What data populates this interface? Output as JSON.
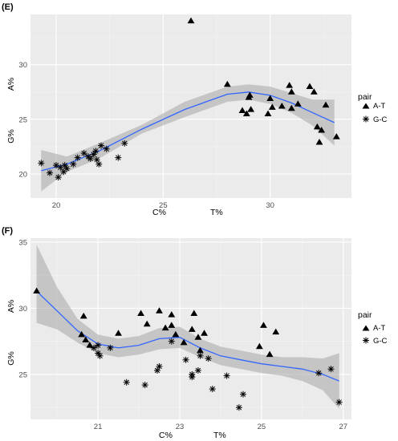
{
  "legend": {
    "title": "pair",
    "items": [
      {
        "label": "A-T",
        "shape": "triangle"
      },
      {
        "label": "G-C",
        "shape": "asterisk"
      }
    ]
  },
  "colors": {
    "panel": "#ebebeb",
    "smooth_line": "#3366ff",
    "ribbon": "#a6a6a6",
    "points": "#000000"
  },
  "chart_data": [
    {
      "panel": "(E)",
      "type": "scatter",
      "title": "",
      "xlabel_left": "C%",
      "xlabel_right": "T%",
      "ylabel_top": "A%",
      "ylabel_bottom": "G%",
      "xlim": [
        18.8,
        33.8
      ],
      "ylim": [
        17.8,
        34.6
      ],
      "x_ticks": [
        20,
        25,
        30
      ],
      "y_ticks": [
        20,
        25,
        30
      ],
      "grid": true,
      "legend_position": "right",
      "series": [
        {
          "name": "A-T",
          "marker": "triangle",
          "points": [
            [
              26.3,
              34.0
            ],
            [
              28.0,
              28.2
            ],
            [
              28.7,
              25.8
            ],
            [
              28.9,
              25.5
            ],
            [
              29.0,
              27.0
            ],
            [
              29.05,
              27.2
            ],
            [
              29.1,
              25.9
            ],
            [
              29.9,
              25.5
            ],
            [
              30.0,
              26.9
            ],
            [
              30.1,
              26.1
            ],
            [
              30.55,
              26.2
            ],
            [
              30.9,
              28.1
            ],
            [
              31.0,
              27.5
            ],
            [
              31.3,
              26.4
            ],
            [
              31.85,
              28.0
            ],
            [
              32.05,
              27.5
            ],
            [
              32.2,
              24.3
            ],
            [
              32.3,
              22.9
            ],
            [
              32.4,
              24.0
            ],
            [
              32.6,
              26.3
            ],
            [
              33.1,
              23.4
            ],
            [
              31.0,
              26.0
            ]
          ]
        },
        {
          "name": "G-C",
          "marker": "asterisk",
          "points": [
            [
              19.3,
              21.0
            ],
            [
              19.7,
              20.1
            ],
            [
              20.0,
              20.8
            ],
            [
              20.1,
              19.7
            ],
            [
              20.35,
              20.2
            ],
            [
              20.4,
              20.8
            ],
            [
              20.5,
              20.5
            ],
            [
              20.8,
              20.9
            ],
            [
              21.0,
              21.5
            ],
            [
              21.3,
              21.9
            ],
            [
              21.5,
              21.6
            ],
            [
              21.6,
              21.4
            ],
            [
              21.75,
              21.8
            ],
            [
              21.85,
              22.1
            ],
            [
              21.9,
              21.3
            ],
            [
              22.0,
              20.9
            ],
            [
              22.1,
              22.6
            ],
            [
              22.35,
              22.3
            ],
            [
              22.9,
              21.5
            ],
            [
              23.2,
              22.8
            ],
            [
              20.2,
              20.6
            ]
          ]
        }
      ],
      "smooth": {
        "x": [
          19.3,
          20.5,
          22.0,
          24.0,
          26.0,
          28.0,
          29.0,
          30.0,
          31.0,
          32.0,
          33.0
        ],
        "y": [
          20.3,
          20.9,
          22.1,
          24.1,
          25.9,
          27.3,
          27.5,
          27.2,
          26.5,
          25.6,
          24.7
        ],
        "lower": [
          18.4,
          20.2,
          21.4,
          23.7,
          25.2,
          26.6,
          26.8,
          26.4,
          25.6,
          24.4,
          22.6
        ],
        "upper": [
          22.2,
          21.6,
          22.8,
          24.5,
          26.6,
          28.0,
          28.2,
          28.0,
          27.4,
          26.8,
          26.8
        ]
      }
    },
    {
      "panel": "(F)",
      "type": "scatter",
      "title": "",
      "xlabel_left": "C%",
      "xlabel_right": "T%",
      "ylabel_top": "A%",
      "ylabel_bottom": "G%",
      "xlim": [
        19.35,
        27.2
      ],
      "ylim": [
        21.6,
        35.3
      ],
      "x_ticks": [
        21,
        23,
        25,
        27
      ],
      "y_ticks": [
        25,
        30,
        35
      ],
      "grid": true,
      "legend_position": "right",
      "series": [
        {
          "name": "A-T",
          "marker": "triangle",
          "points": [
            [
              19.5,
              31.3
            ],
            [
              20.6,
              28.0
            ],
            [
              20.65,
              29.4
            ],
            [
              20.7,
              27.6
            ],
            [
              20.8,
              27.2
            ],
            [
              21.5,
              28.1
            ],
            [
              22.05,
              29.6
            ],
            [
              22.2,
              28.8
            ],
            [
              22.5,
              29.8
            ],
            [
              22.65,
              28.5
            ],
            [
              22.8,
              29.5
            ],
            [
              22.8,
              28.7
            ],
            [
              22.9,
              28.0
            ],
            [
              23.1,
              27.4
            ],
            [
              23.3,
              28.4
            ],
            [
              23.35,
              29.6
            ],
            [
              23.45,
              27.8
            ],
            [
              23.6,
              28.1
            ],
            [
              23.5,
              26.8
            ],
            [
              24.95,
              27.1
            ],
            [
              25.05,
              28.7
            ],
            [
              25.2,
              26.5
            ],
            [
              25.35,
              28.2
            ]
          ]
        },
        {
          "name": "G-C",
          "marker": "asterisk",
          "points": [
            [
              20.9,
              27.0
            ],
            [
              21.0,
              27.2
            ],
            [
              21.0,
              26.6
            ],
            [
              21.05,
              26.4
            ],
            [
              21.3,
              27.0
            ],
            [
              21.7,
              24.4
            ],
            [
              22.15,
              24.2
            ],
            [
              22.45,
              25.3
            ],
            [
              22.5,
              25.6
            ],
            [
              22.8,
              27.5
            ],
            [
              23.15,
              26.1
            ],
            [
              23.3,
              25.0
            ],
            [
              23.3,
              24.8
            ],
            [
              23.45,
              25.3
            ],
            [
              23.5,
              26.4
            ],
            [
              23.7,
              26.2
            ],
            [
              23.8,
              23.9
            ],
            [
              24.15,
              24.9
            ],
            [
              24.45,
              22.5
            ],
            [
              24.55,
              23.5
            ],
            [
              26.4,
              25.1
            ],
            [
              26.7,
              25.4
            ],
            [
              26.9,
              22.9
            ]
          ]
        }
      ],
      "smooth": {
        "x": [
          19.5,
          20.0,
          20.5,
          21.0,
          21.5,
          22.0,
          22.5,
          23.0,
          23.5,
          24.0,
          24.5,
          25.0,
          25.5,
          26.0,
          26.5,
          26.9
        ],
        "y": [
          31.3,
          29.8,
          28.3,
          27.3,
          27.0,
          27.2,
          27.7,
          27.8,
          27.0,
          26.4,
          26.1,
          25.8,
          25.6,
          25.4,
          25.0,
          24.5
        ],
        "lower": [
          28.9,
          28.4,
          27.4,
          26.6,
          26.3,
          26.5,
          26.9,
          27.0,
          26.3,
          25.7,
          25.4,
          25.1,
          24.9,
          24.5,
          23.8,
          22.4
        ],
        "upper": [
          34.8,
          31.6,
          29.2,
          28.0,
          27.7,
          27.9,
          28.5,
          28.6,
          27.7,
          27.1,
          26.8,
          26.5,
          26.3,
          26.3,
          26.2,
          26.6
        ]
      }
    }
  ]
}
